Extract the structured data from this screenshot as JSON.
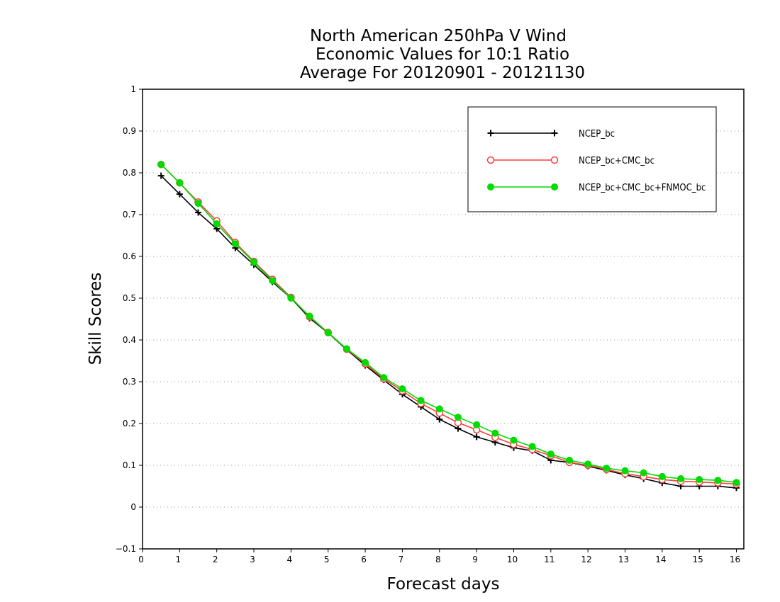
{
  "chart_data": {
    "type": "line",
    "title": [
      "North American 250hPa V Wind",
      "Economic Values for 10:1 Ratio",
      "Average For 20120901 - 20121130"
    ],
    "xlabel": "Forecast days",
    "ylabel": "Skill Scores",
    "xlim": [
      0,
      16.2
    ],
    "ylim": [
      -0.1,
      1
    ],
    "xticks": [
      0,
      1,
      2,
      3,
      4,
      5,
      6,
      7,
      8,
      9,
      10,
      11,
      12,
      13,
      14,
      15,
      16
    ],
    "yticks": [
      -0.1,
      0,
      0.1,
      0.2,
      0.3,
      0.4,
      0.5,
      0.6,
      0.7,
      0.8,
      0.9,
      1
    ],
    "ytick_labels": [
      "−0.1",
      "0",
      "0.1",
      "0.2",
      "0.3",
      "0.4",
      "0.5",
      "0.6",
      "0.7",
      "0.8",
      "0.9",
      "1"
    ],
    "grid": true,
    "legend_position": "top-right",
    "x": [
      0.5,
      1.0,
      1.5,
      2.0,
      2.5,
      3.0,
      3.5,
      4.0,
      4.5,
      5.0,
      5.5,
      6.0,
      6.5,
      7.0,
      7.5,
      8.0,
      8.5,
      9.0,
      9.5,
      10.0,
      10.5,
      11.0,
      11.5,
      12.0,
      12.5,
      13.0,
      13.5,
      14.0,
      14.5,
      15.0,
      15.5,
      16.0
    ],
    "series": [
      {
        "name": "NCEP_bc",
        "color": "#000000",
        "marker": "plus",
        "values": [
          0.793,
          0.749,
          0.705,
          0.666,
          0.62,
          0.58,
          0.539,
          0.5,
          0.452,
          0.417,
          0.377,
          0.339,
          0.304,
          0.27,
          0.24,
          0.21,
          0.188,
          0.168,
          0.155,
          0.142,
          0.135,
          0.112,
          0.107,
          0.098,
          0.088,
          0.077,
          0.068,
          0.058,
          0.05,
          0.05,
          0.05,
          0.046
        ]
      },
      {
        "name": "NCEP_bc+CMC_bc",
        "color": "#ff3c3c",
        "marker": "open-circle",
        "values": [
          0.82,
          0.776,
          0.73,
          0.685,
          0.633,
          0.588,
          0.545,
          0.502,
          0.455,
          0.418,
          0.378,
          0.343,
          0.307,
          0.278,
          0.248,
          0.225,
          0.202,
          0.185,
          0.167,
          0.15,
          0.138,
          0.123,
          0.107,
          0.1,
          0.09,
          0.08,
          0.073,
          0.066,
          0.062,
          0.06,
          0.058,
          0.055
        ]
      },
      {
        "name": "NCEP_bc+CMC_bc+FNMOC_bc",
        "color": "#00dc00",
        "marker": "filled-circle",
        "values": [
          0.82,
          0.776,
          0.727,
          0.678,
          0.63,
          0.586,
          0.542,
          0.5,
          0.457,
          0.417,
          0.379,
          0.346,
          0.31,
          0.283,
          0.255,
          0.235,
          0.215,
          0.197,
          0.177,
          0.16,
          0.145,
          0.127,
          0.112,
          0.103,
          0.093,
          0.087,
          0.082,
          0.073,
          0.068,
          0.066,
          0.064,
          0.059
        ]
      }
    ]
  }
}
